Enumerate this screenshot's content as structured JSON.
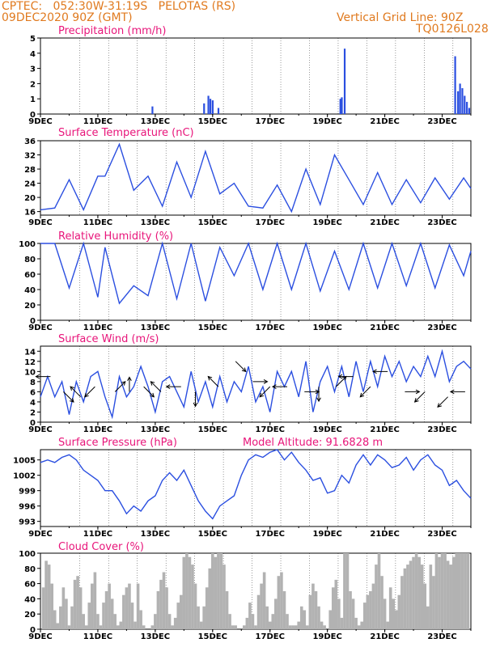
{
  "header": {
    "line1": "CPTEC:   052:30W-31:19S   PELOTAS (RS)",
    "line2": "09DEC2020 90Z (GMT)",
    "right1": "Vertical Grid Line: 90Z",
    "right2": "TQ0126L028"
  },
  "colors": {
    "header": "#e07a1f",
    "title": "#e8157a",
    "line": "#2b4fe0",
    "cloud": "#b2b2b2",
    "arrow": "#000000"
  },
  "chart_data": [
    {
      "id": "precip",
      "type": "bar",
      "title": "Precipitation (mm/h)",
      "xlabel": "",
      "ylabel": "",
      "ylim": [
        0,
        5
      ],
      "yticks": [
        "0",
        "1",
        "2",
        "3",
        "4",
        "5"
      ],
      "xticks": [
        "9DEC",
        "11DEC",
        "13DEC",
        "15DEC",
        "17DEC",
        "19DEC",
        "21DEC",
        "23DEC"
      ],
      "xlim_days": [
        9,
        24
      ],
      "bars": [
        {
          "x": 12.9,
          "y": 0.5
        },
        {
          "x": 14.7,
          "y": 0.7
        },
        {
          "x": 14.85,
          "y": 1.2
        },
        {
          "x": 14.92,
          "y": 1.0
        },
        {
          "x": 15.0,
          "y": 0.9
        },
        {
          "x": 15.2,
          "y": 0.4
        },
        {
          "x": 19.45,
          "y": 1.0
        },
        {
          "x": 19.5,
          "y": 1.1
        },
        {
          "x": 19.6,
          "y": 4.3
        },
        {
          "x": 23.45,
          "y": 3.8
        },
        {
          "x": 23.55,
          "y": 1.5
        },
        {
          "x": 23.62,
          "y": 2.0
        },
        {
          "x": 23.7,
          "y": 1.7
        },
        {
          "x": 23.78,
          "y": 1.2
        },
        {
          "x": 23.86,
          "y": 0.8
        },
        {
          "x": 23.94,
          "y": 0.4
        }
      ]
    },
    {
      "id": "temp",
      "type": "line",
      "title": "Surface Temperature (nC)",
      "ylim": [
        15,
        36
      ],
      "yticks": [
        "16",
        "20",
        "24",
        "28",
        "32",
        "36"
      ],
      "xticks": [
        "9DEC",
        "11DEC",
        "13DEC",
        "15DEC",
        "17DEC",
        "19DEC",
        "21DEC",
        "23DEC"
      ],
      "xlim_days": [
        9,
        24
      ],
      "x": [
        9,
        9.5,
        10,
        10.5,
        11,
        11.25,
        11.75,
        12.25,
        12.75,
        13.25,
        13.75,
        14.25,
        14.75,
        15.25,
        15.75,
        16.25,
        16.75,
        17.25,
        17.75,
        18.25,
        18.75,
        19.25,
        19.75,
        20.25,
        20.75,
        21.25,
        21.75,
        22.25,
        22.75,
        23.25,
        23.75,
        24
      ],
      "y": [
        16.5,
        17,
        25,
        16.5,
        26,
        26,
        35,
        22,
        26,
        17.5,
        30,
        20,
        33,
        21,
        24,
        17.5,
        17,
        23.5,
        16,
        28,
        18,
        32,
        25,
        18,
        27,
        18,
        25,
        18.5,
        25.5,
        19.5,
        25.5,
        22.5
      ]
    },
    {
      "id": "rh",
      "type": "line",
      "title": "Relative Humidity (%)",
      "ylim": [
        0,
        100
      ],
      "yticks": [
        "0",
        "20",
        "40",
        "60",
        "80",
        "100"
      ],
      "xticks": [
        "9DEC",
        "11DEC",
        "13DEC",
        "15DEC",
        "17DEC",
        "19DEC",
        "21DEC",
        "23DEC"
      ],
      "xlim_days": [
        9,
        24
      ],
      "x": [
        9,
        9.5,
        10,
        10.5,
        11,
        11.25,
        11.75,
        12.25,
        12.75,
        13.25,
        13.75,
        14.25,
        14.75,
        15.25,
        15.75,
        16.25,
        16.75,
        17.25,
        17.75,
        18.25,
        18.75,
        19.25,
        19.75,
        20.25,
        20.75,
        21.25,
        21.75,
        22.25,
        22.75,
        23.25,
        23.75,
        24
      ],
      "y": [
        100,
        100,
        42,
        100,
        30,
        95,
        22,
        45,
        32,
        100,
        28,
        100,
        25,
        95,
        58,
        100,
        40,
        100,
        40,
        100,
        38,
        90,
        40,
        100,
        42,
        100,
        45,
        100,
        42,
        98,
        58,
        90
      ]
    },
    {
      "id": "wind",
      "type": "line",
      "title": "Surface Wind (m/s)",
      "ylim": [
        0,
        15
      ],
      "yticks": [
        "0",
        "2",
        "4",
        "6",
        "8",
        "10",
        "12",
        "14"
      ],
      "xticks": [
        "9DEC",
        "11DEC",
        "13DEC",
        "15DEC",
        "17DEC",
        "19DEC",
        "21DEC",
        "23DEC"
      ],
      "xlim_days": [
        9,
        24
      ],
      "x": [
        9,
        9.25,
        9.5,
        9.75,
        10,
        10.25,
        10.5,
        10.75,
        11,
        11.25,
        11.5,
        11.75,
        12,
        12.25,
        12.5,
        12.75,
        13,
        13.25,
        13.5,
        13.75,
        14,
        14.25,
        14.5,
        14.75,
        15,
        15.25,
        15.5,
        15.75,
        16,
        16.25,
        16.5,
        16.75,
        17,
        17.25,
        17.5,
        17.75,
        18,
        18.25,
        18.5,
        18.75,
        19,
        19.25,
        19.5,
        19.75,
        20,
        20.25,
        20.5,
        20.75,
        21,
        21.25,
        21.5,
        21.75,
        22,
        22.25,
        22.5,
        22.75,
        23,
        23.25,
        23.5,
        23.75,
        24
      ],
      "y": [
        5,
        9,
        5,
        8,
        1.5,
        8,
        4,
        9,
        10,
        5,
        1,
        9,
        5,
        7,
        11,
        7,
        2,
        8,
        9,
        6,
        3,
        10,
        4,
        8,
        3,
        9,
        4,
        8,
        6,
        11,
        4,
        7,
        2,
        10,
        7,
        10,
        5,
        12,
        2,
        8,
        11,
        6,
        11,
        5,
        12,
        6,
        12,
        7,
        13,
        9,
        12,
        8,
        11,
        9,
        13,
        9,
        14,
        8,
        11,
        12,
        10.5
      ],
      "arrows": [
        {
          "x": 9.35,
          "speed": 9,
          "dir": "W"
        },
        {
          "x": 9.8,
          "speed": 6,
          "dir": "SE"
        },
        {
          "x": 10.4,
          "speed": 5,
          "dir": "NW"
        },
        {
          "x": 10.9,
          "speed": 7,
          "dir": "SW"
        },
        {
          "x": 11.6,
          "speed": 6,
          "dir": "NE"
        },
        {
          "x": 12.1,
          "speed": 6,
          "dir": "N"
        },
        {
          "x": 12.6,
          "speed": 7,
          "dir": "SE"
        },
        {
          "x": 13.2,
          "speed": 6,
          "dir": "NW"
        },
        {
          "x": 13.9,
          "speed": 7,
          "dir": "W"
        },
        {
          "x": 14.4,
          "speed": 6,
          "dir": "S"
        },
        {
          "x": 15.2,
          "speed": 7,
          "dir": "NW"
        },
        {
          "x": 15.8,
          "speed": 12,
          "dir": "SE"
        },
        {
          "x": 16.4,
          "speed": 8,
          "dir": "E"
        },
        {
          "x": 17.0,
          "speed": 7,
          "dir": "SW"
        },
        {
          "x": 17.6,
          "speed": 7,
          "dir": "W"
        },
        {
          "x": 18.2,
          "speed": 6,
          "dir": "E"
        },
        {
          "x": 18.7,
          "speed": 7,
          "dir": "S"
        },
        {
          "x": 19.3,
          "speed": 7,
          "dir": "NE"
        },
        {
          "x": 19.9,
          "speed": 9,
          "dir": "W"
        },
        {
          "x": 20.5,
          "speed": 7,
          "dir": "SW"
        },
        {
          "x": 21.1,
          "speed": 10,
          "dir": "W"
        },
        {
          "x": 21.7,
          "speed": 6,
          "dir": "E"
        },
        {
          "x": 22.4,
          "speed": 6,
          "dir": "SW"
        },
        {
          "x": 23.2,
          "speed": 5,
          "dir": "SW"
        },
        {
          "x": 23.8,
          "speed": 6,
          "dir": "W"
        }
      ]
    },
    {
      "id": "pres",
      "type": "line",
      "title": "Surface Pressure (hPa)",
      "note": "Model Altitude: 91.6828 m",
      "ylim": [
        992,
        1007
      ],
      "yticks": [
        "993",
        "996",
        "999",
        "1002",
        "1005"
      ],
      "xticks": [
        "9DEC",
        "11DEC",
        "13DEC",
        "15DEC",
        "17DEC",
        "19DEC",
        "21DEC",
        "23DEC"
      ],
      "xlim_days": [
        9,
        24
      ],
      "x": [
        9,
        9.25,
        9.5,
        9.75,
        10,
        10.25,
        10.5,
        10.75,
        11,
        11.25,
        11.5,
        11.75,
        12,
        12.25,
        12.5,
        12.75,
        13,
        13.25,
        13.5,
        13.75,
        14,
        14.25,
        14.5,
        14.75,
        15,
        15.25,
        15.5,
        15.75,
        16,
        16.25,
        16.5,
        16.75,
        17,
        17.25,
        17.5,
        17.75,
        18,
        18.25,
        18.5,
        18.75,
        19,
        19.25,
        19.5,
        19.75,
        20,
        20.25,
        20.5,
        20.75,
        21,
        21.25,
        21.5,
        21.75,
        22,
        22.25,
        22.5,
        22.75,
        23,
        23.25,
        23.5,
        23.75,
        24
      ],
      "y": [
        1004.5,
        1005,
        1004.5,
        1005.5,
        1006,
        1005,
        1003,
        1002,
        1001,
        999,
        999,
        997,
        994.5,
        996,
        995,
        997,
        998,
        1001,
        1002.5,
        1001,
        1003,
        1000,
        997,
        995,
        993.5,
        996,
        997,
        998,
        1002,
        1005,
        1006,
        1005.5,
        1006.5,
        1007,
        1005,
        1006.5,
        1004.5,
        1003,
        1001,
        1001.5,
        998.5,
        999,
        1002,
        1000.5,
        1004,
        1006,
        1004,
        1006,
        1005,
        1003.5,
        1004,
        1005.5,
        1003,
        1005,
        1006,
        1004,
        1003,
        1000,
        1001,
        999,
        997.5
      ]
    },
    {
      "id": "cloud",
      "type": "bar",
      "title": "Cloud Cover (%)",
      "ylim": [
        0,
        100
      ],
      "yticks": [
        "0",
        "20",
        "40",
        "60",
        "80",
        "100"
      ],
      "xticks": [
        "9DEC",
        "11DEC",
        "13DEC",
        "15DEC",
        "17DEC",
        "19DEC",
        "21DEC",
        "23DEC"
      ],
      "xlim_days": [
        9,
        24
      ],
      "x": [
        9.1,
        9.2,
        9.3,
        9.4,
        9.5,
        9.6,
        9.7,
        9.8,
        9.9,
        10.0,
        10.1,
        10.2,
        10.3,
        10.4,
        10.5,
        10.6,
        10.7,
        10.8,
        10.9,
        11.0,
        11.1,
        11.2,
        11.3,
        11.4,
        11.5,
        11.6,
        11.7,
        11.8,
        11.9,
        12.0,
        12.1,
        12.2,
        12.3,
        12.4,
        12.5,
        12.6,
        12.7,
        12.8,
        12.9,
        13.0,
        13.1,
        13.2,
        13.3,
        13.4,
        13.5,
        13.6,
        13.7,
        13.8,
        13.9,
        14.0,
        14.1,
        14.2,
        14.3,
        14.4,
        14.5,
        14.6,
        14.7,
        14.8,
        14.9,
        15.0,
        15.1,
        15.2,
        15.3,
        15.4,
        15.5,
        15.6,
        15.7,
        15.8,
        15.9,
        16.0,
        16.1,
        16.2,
        16.3,
        16.4,
        16.5,
        16.6,
        16.7,
        16.8,
        16.9,
        17.0,
        17.1,
        17.2,
        17.3,
        17.4,
        17.5,
        17.6,
        17.7,
        17.8,
        17.9,
        18.0,
        18.1,
        18.2,
        18.3,
        18.4,
        18.5,
        18.6,
        18.7,
        18.8,
        18.9,
        19.0,
        19.1,
        19.2,
        19.3,
        19.4,
        19.5,
        19.6,
        19.7,
        19.8,
        19.9,
        20.0,
        20.1,
        20.2,
        20.3,
        20.4,
        20.5,
        20.6,
        20.7,
        20.8,
        20.9,
        21.0,
        21.1,
        21.2,
        21.3,
        21.4,
        21.5,
        21.6,
        21.7,
        21.8,
        21.9,
        22.0,
        22.1,
        22.2,
        22.3,
        22.4,
        22.5,
        22.6,
        22.7,
        22.8,
        22.9,
        23.0,
        23.1,
        23.2,
        23.3,
        23.4,
        23.5,
        23.6,
        23.7,
        23.8,
        23.9
      ],
      "values": [
        55,
        90,
        85,
        60,
        25,
        8,
        30,
        55,
        40,
        5,
        30,
        65,
        70,
        55,
        20,
        5,
        35,
        60,
        75,
        20,
        5,
        35,
        50,
        60,
        40,
        20,
        5,
        10,
        45,
        55,
        60,
        35,
        10,
        60,
        25,
        5,
        0,
        0,
        5,
        20,
        50,
        65,
        75,
        55,
        20,
        5,
        15,
        35,
        45,
        95,
        100,
        95,
        85,
        60,
        30,
        10,
        30,
        55,
        80,
        100,
        95,
        100,
        100,
        85,
        50,
        20,
        5,
        5,
        0,
        0,
        5,
        15,
        35,
        20,
        5,
        45,
        60,
        75,
        30,
        10,
        20,
        40,
        70,
        75,
        50,
        20,
        5,
        5,
        5,
        10,
        30,
        25,
        5,
        45,
        60,
        50,
        30,
        10,
        5,
        0,
        25,
        55,
        65,
        40,
        15,
        100,
        100,
        50,
        40,
        15,
        5,
        10,
        35,
        45,
        50,
        60,
        85,
        100,
        70,
        40,
        10,
        55,
        40,
        25,
        45,
        70,
        80,
        85,
        90,
        95,
        100,
        95,
        85,
        60,
        30,
        85,
        70,
        100,
        95,
        100,
        100,
        90,
        85,
        95,
        100,
        100,
        100,
        100,
        100
      ]
    }
  ]
}
